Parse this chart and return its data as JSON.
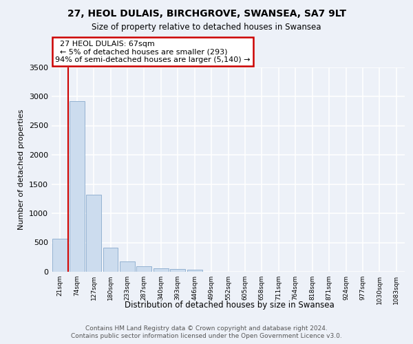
{
  "title1": "27, HEOL DULAIS, BIRCHGROVE, SWANSEA, SA7 9LT",
  "title2": "Size of property relative to detached houses in Swansea",
  "xlabel": "Distribution of detached houses by size in Swansea",
  "ylabel": "Number of detached properties",
  "footnote1": "Contains HM Land Registry data © Crown copyright and database right 2024.",
  "footnote2": "Contains public sector information licensed under the Open Government Licence v3.0.",
  "annotation_line1": "27 HEOL DULAIS: 67sqm",
  "annotation_line2": "← 5% of detached houses are smaller (293)",
  "annotation_line3": "94% of semi-detached houses are larger (5,140) →",
  "bar_color": "#ccdcee",
  "bar_edge_color": "#88aacc",
  "marker_color": "#cc0000",
  "categories": [
    "21sqm",
    "74sqm",
    "127sqm",
    "180sqm",
    "233sqm",
    "287sqm",
    "340sqm",
    "393sqm",
    "446sqm",
    "499sqm",
    "552sqm",
    "605sqm",
    "658sqm",
    "711sqm",
    "764sqm",
    "818sqm",
    "871sqm",
    "924sqm",
    "977sqm",
    "1030sqm",
    "1083sqm"
  ],
  "values": [
    570,
    2920,
    1320,
    415,
    175,
    90,
    55,
    45,
    40,
    0,
    0,
    0,
    0,
    0,
    0,
    0,
    0,
    0,
    0,
    0,
    0
  ],
  "ylim_max": 3500,
  "yticks": [
    0,
    500,
    1000,
    1500,
    2000,
    2500,
    3000,
    3500
  ],
  "bg_color": "#edf1f8",
  "grid_color": "#ffffff",
  "title1_fontsize": 10,
  "title2_fontsize": 8.5,
  "ylabel_fontsize": 8,
  "xlabel_fontsize": 8.5,
  "footnote_fontsize": 6.5
}
